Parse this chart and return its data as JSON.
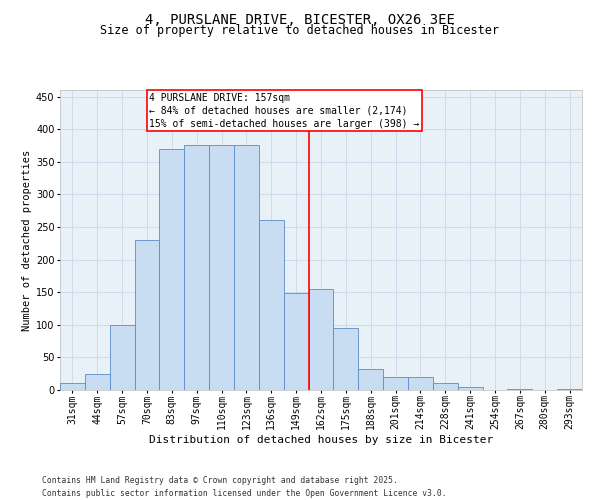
{
  "title": "4, PURSLANE DRIVE, BICESTER, OX26 3EE",
  "subtitle": "Size of property relative to detached houses in Bicester",
  "xlabel": "Distribution of detached houses by size in Bicester",
  "ylabel": "Number of detached properties",
  "bar_labels": [
    "31sqm",
    "44sqm",
    "57sqm",
    "70sqm",
    "83sqm",
    "97sqm",
    "110sqm",
    "123sqm",
    "136sqm",
    "149sqm",
    "162sqm",
    "175sqm",
    "188sqm",
    "201sqm",
    "214sqm",
    "228sqm",
    "241sqm",
    "254sqm",
    "267sqm",
    "280sqm",
    "293sqm"
  ],
  "bar_heights": [
    10,
    25,
    100,
    230,
    370,
    375,
    375,
    375,
    260,
    148,
    155,
    95,
    32,
    20,
    20,
    10,
    5,
    0,
    2,
    0,
    2
  ],
  "bar_color": "#c9ddf2",
  "bar_edge_color": "#5b8cc8",
  "vline_color": "red",
  "vline_x": 9.5,
  "annotation_line1": "4 PURSLANE DRIVE: 157sqm",
  "annotation_line2": "← 84% of detached houses are smaller (2,174)",
  "annotation_line3": "15% of semi-detached houses are larger (398) →",
  "ylim": [
    0,
    460
  ],
  "yticks": [
    0,
    50,
    100,
    150,
    200,
    250,
    300,
    350,
    400,
    450
  ],
  "grid_color": "#c8d8ea",
  "bg_color": "#e8f0f8",
  "footer1": "Contains HM Land Registry data © Crown copyright and database right 2025.",
  "footer2": "Contains public sector information licensed under the Open Government Licence v3.0.",
  "title_fontsize": 10,
  "subtitle_fontsize": 8.5,
  "axis_label_fontsize": 7.5,
  "tick_fontsize": 7,
  "annotation_fontsize": 7,
  "footer_fontsize": 5.8
}
